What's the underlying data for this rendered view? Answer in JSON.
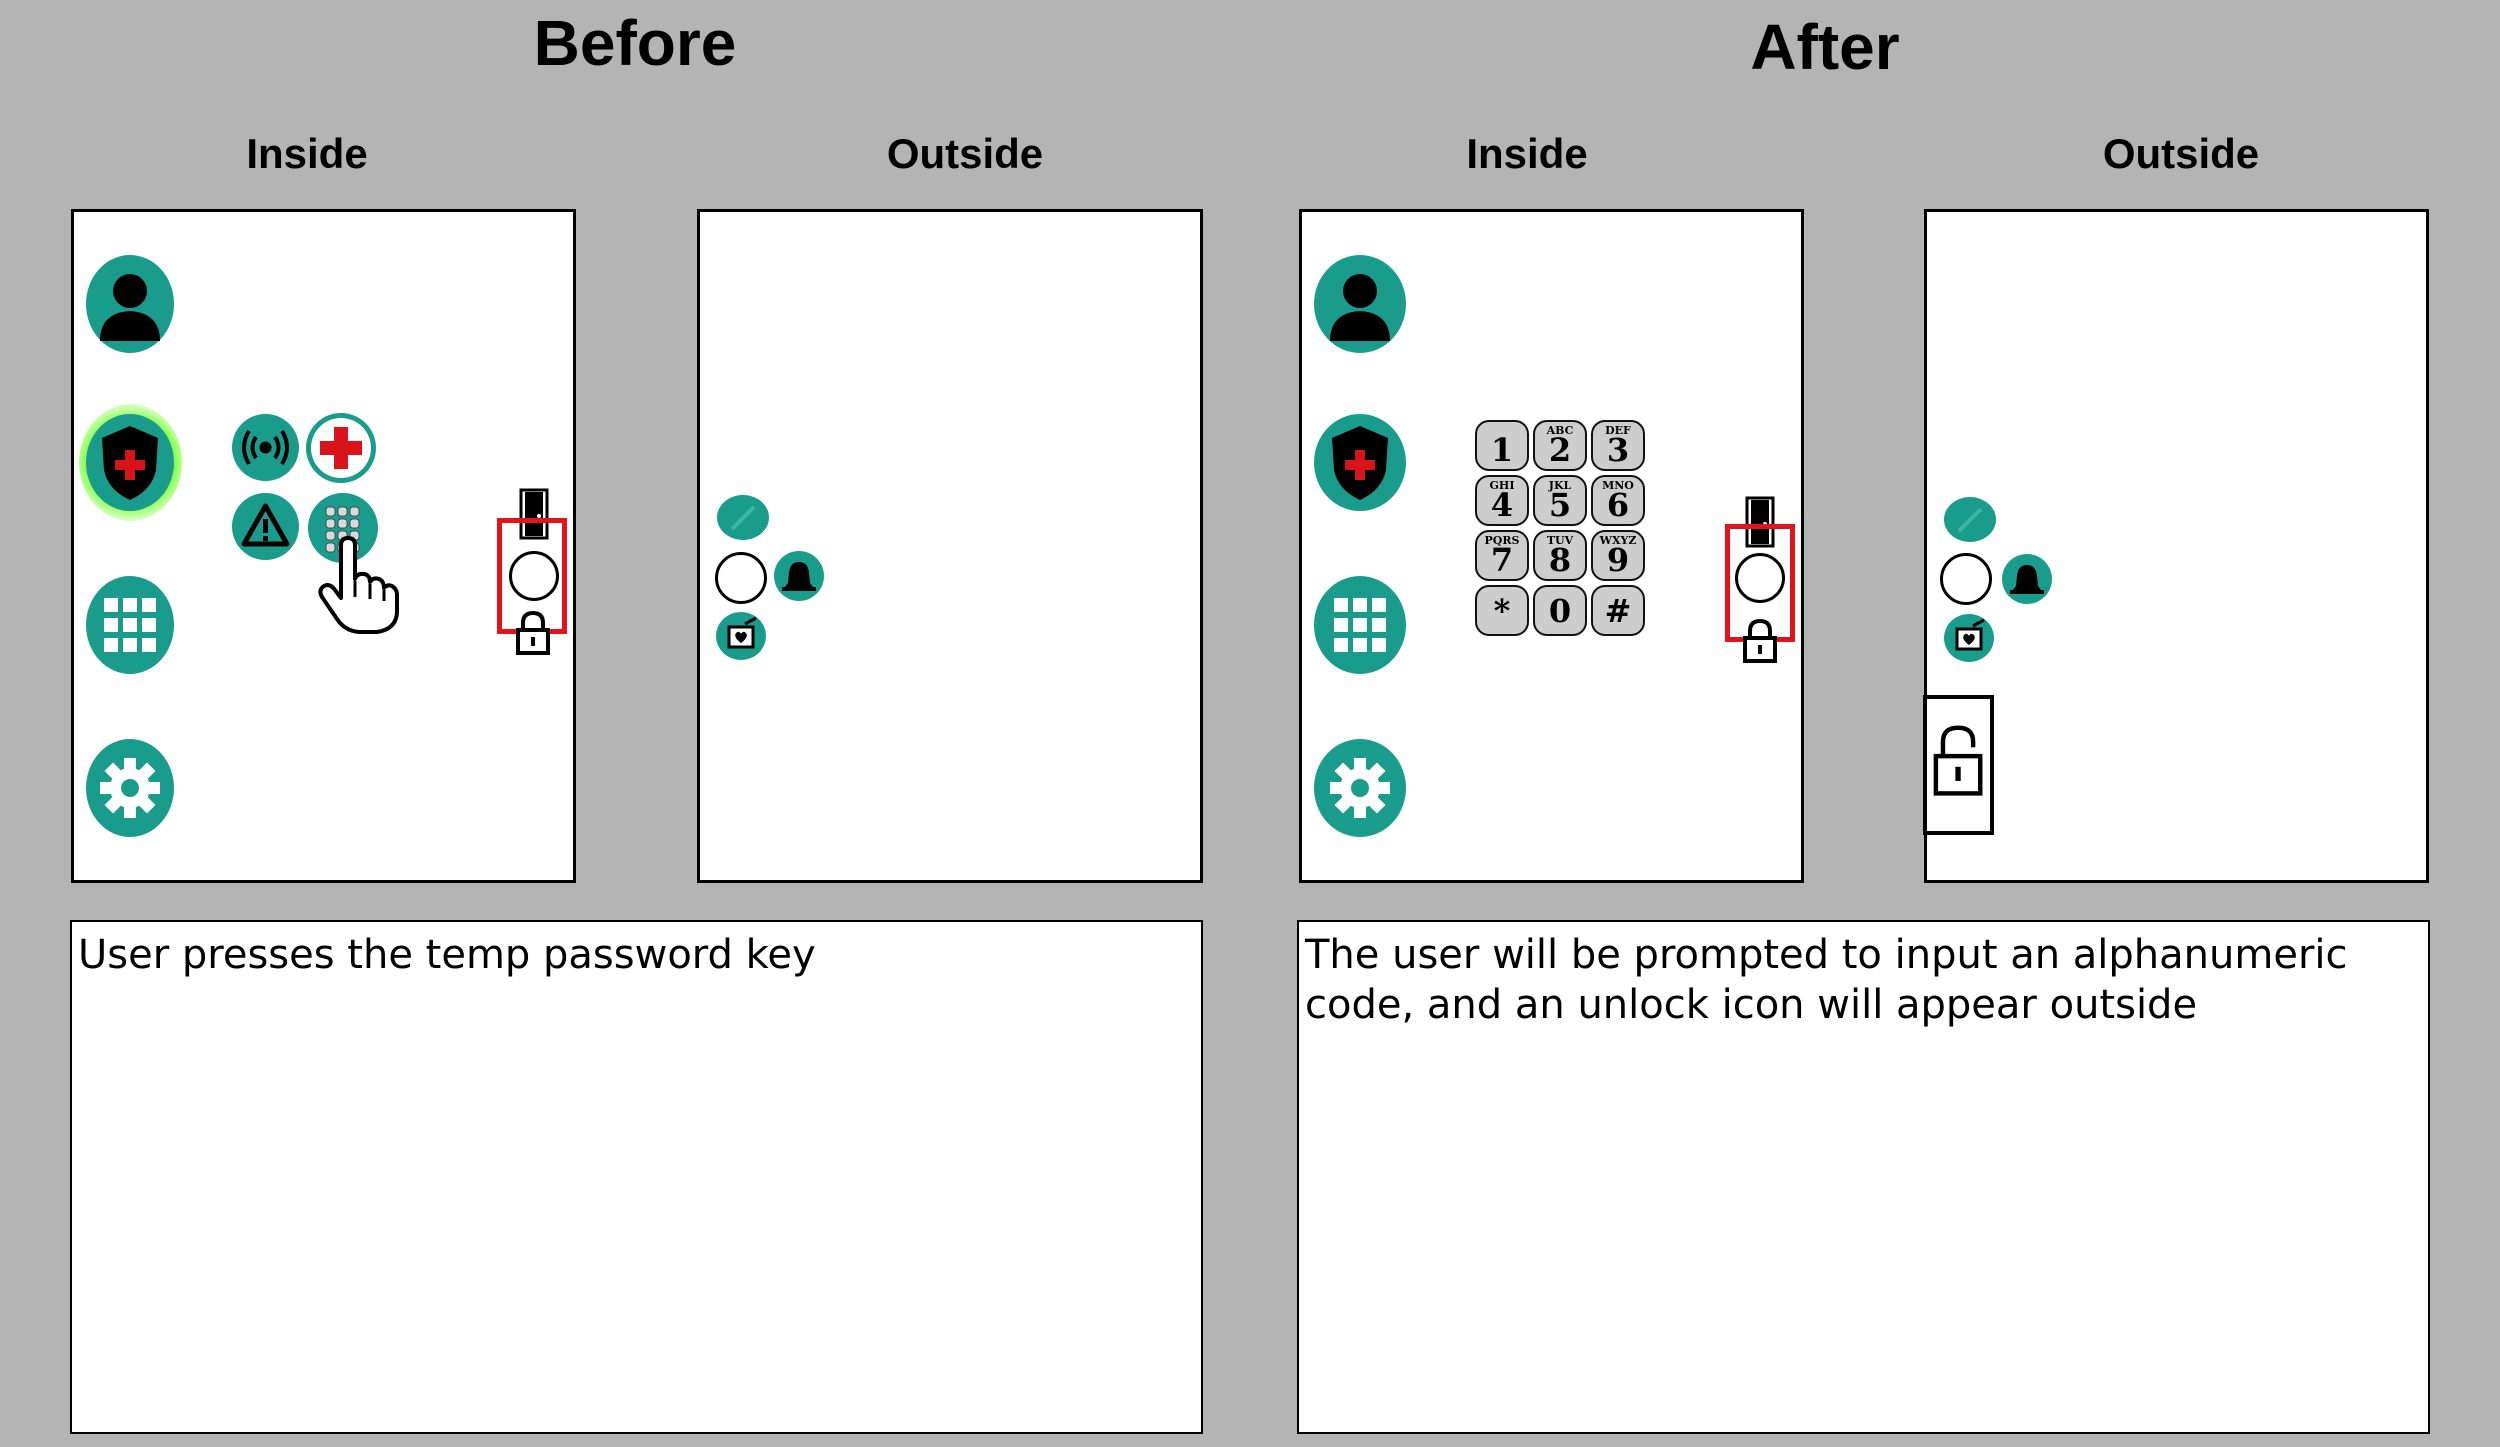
{
  "before": {
    "title": "Before",
    "inside_label": "Inside",
    "outside_label": "Outside",
    "description": "User presses the temp password key"
  },
  "after": {
    "title": "After",
    "inside_label": "Inside",
    "outside_label": "Outside",
    "description": "The user will be prompted to input an alphanumeric code, and an unlock icon will appear outside"
  },
  "keypad": [
    {
      "num": "1",
      "letters": ""
    },
    {
      "num": "2",
      "letters": "ABC"
    },
    {
      "num": "3",
      "letters": "DEF"
    },
    {
      "num": "4",
      "letters": "GHI"
    },
    {
      "num": "5",
      "letters": "JKL"
    },
    {
      "num": "6",
      "letters": "MNO"
    },
    {
      "num": "7",
      "letters": "PQRS"
    },
    {
      "num": "8",
      "letters": "TUV"
    },
    {
      "num": "9",
      "letters": "WXYZ"
    },
    {
      "num": "*",
      "letters": ""
    },
    {
      "num": "0",
      "letters": ""
    },
    {
      "num": "#",
      "letters": ""
    }
  ],
  "colors": {
    "background": "#b4b4b4",
    "teal": "#1a9c8c",
    "highlight": "#e0141a",
    "glow": "#7cff3a",
    "medical_red": "#d8131a"
  },
  "icons": {
    "inside_menu": [
      "user-icon",
      "security-shield-icon",
      "apps-grid-icon",
      "settings-gear-icon"
    ],
    "security_options": [
      "alarm-broadcast-icon",
      "medical-cross-icon",
      "warning-icon",
      "temp-password-keypad-icon"
    ],
    "door_controls": [
      "door-icon",
      "doorbell-button",
      "lock-icon"
    ],
    "outside_controls": [
      "cancel-icon",
      "doorbell-button",
      "bell-icon",
      "message-icon",
      "unlock-icon"
    ]
  }
}
